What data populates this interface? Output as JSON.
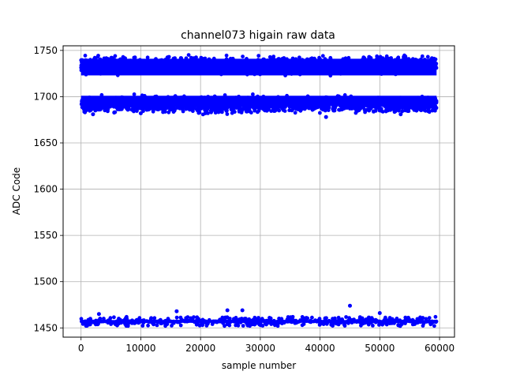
{
  "chart_data": {
    "type": "scatter",
    "title": "channel073 higain raw data",
    "xlabel": "sample number",
    "ylabel": "ADC Code",
    "xlim": [
      -3000,
      62500
    ],
    "ylim": [
      1440,
      1755
    ],
    "xticks": [
      0,
      10000,
      20000,
      30000,
      40000,
      50000,
      60000
    ],
    "yticks": [
      1450,
      1500,
      1550,
      1600,
      1650,
      1700,
      1750
    ],
    "grid": true,
    "marker_color": "#0000ff",
    "series": [
      {
        "x_range": [
          0,
          59500
        ],
        "bands": [
          {
            "center": 1732,
            "spread": [
              1722,
              1746
            ]
          },
          {
            "center": 1696,
            "spread": [
              1680,
              1703
            ]
          },
          {
            "center": 1457,
            "spread": [
              1454,
              1468
            ]
          }
        ],
        "outliers": [
          {
            "x": 45000,
            "y": 1474
          },
          {
            "x": 27000,
            "y": 1469
          },
          {
            "x": 24500,
            "y": 1469
          },
          {
            "x": 16000,
            "y": 1468
          },
          {
            "x": 3000,
            "y": 1465
          },
          {
            "x": 50000,
            "y": 1466
          },
          {
            "x": 41000,
            "y": 1678
          },
          {
            "x": 2000,
            "y": 1681
          },
          {
            "x": 53500,
            "y": 1681
          },
          {
            "x": 10000,
            "y": 1682
          }
        ]
      }
    ]
  }
}
